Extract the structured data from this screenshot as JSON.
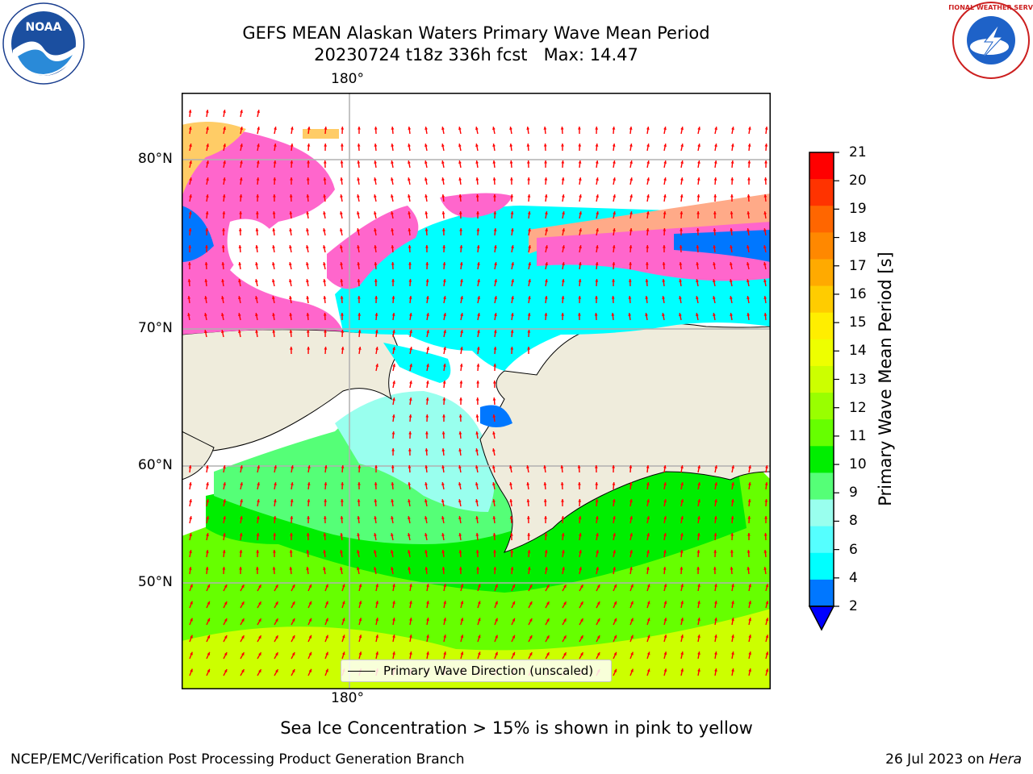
{
  "title": {
    "line1": "GEFS MEAN Alaskan Waters Primary Wave Mean Period",
    "line2": "20230724 t18z 336h fcst   Max: 14.47"
  },
  "map": {
    "lon_label_top": "180°",
    "lon_label_bottom": "180°",
    "lat_labels": [
      "80°N",
      "70°N",
      "60°N",
      "50°N"
    ],
    "land_color": "#efecdc",
    "ocean_color": "#ffffff",
    "vector_color": "#ff0000",
    "grid_color": "#b0b0b0"
  },
  "legend": {
    "entry": "Primary Wave Direction (unscaled)"
  },
  "colorbar": {
    "label": "Primary Wave Mean Period [s]",
    "ticks": [
      "21",
      "20",
      "19",
      "18",
      "17",
      "16",
      "15",
      "14",
      "13",
      "12",
      "11",
      "10",
      "9",
      "8",
      "6",
      "4",
      "2"
    ],
    "colors": [
      "#ff0000",
      "#ff3300",
      "#ff6600",
      "#ff8800",
      "#ffaa00",
      "#ffcc00",
      "#ffee00",
      "#eeff00",
      "#ccff00",
      "#99ff00",
      "#66ff00",
      "#00ee00",
      "#55ff77",
      "#99ffee",
      "#55ffff",
      "#00ffff",
      "#0077ff"
    ],
    "extend_color": "#0000ff"
  },
  "caption": "Sea Ice Concentration > 15% is shown in pink to yellow",
  "footer": {
    "left": "NCEP/EMC/Verification Post Processing Product Generation Branch",
    "right_date": "26 Jul 2023 on ",
    "right_host": "Hera"
  },
  "logos": {
    "noaa_text": "NOAA",
    "nws_text": "NATIONAL WEATHER SERVICE"
  }
}
